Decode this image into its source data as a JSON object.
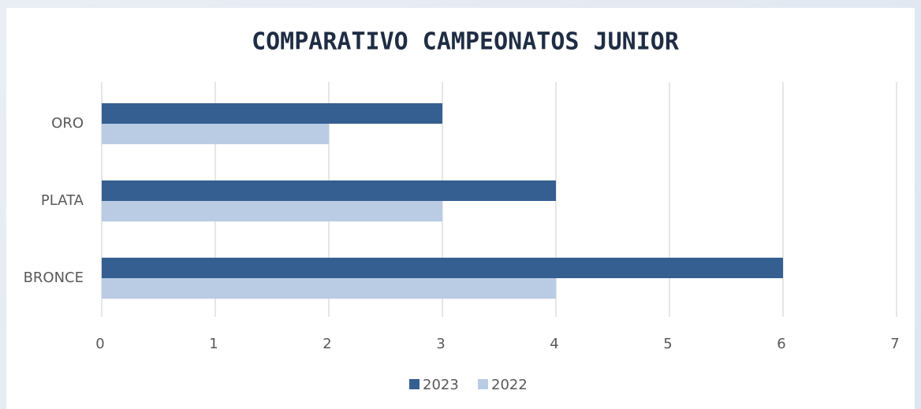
{
  "chart_data": {
    "type": "bar",
    "orientation": "horizontal",
    "title": "COMPARATIVO CAMPEONATOS JUNIOR",
    "categories": [
      "ORO",
      "PLATA",
      "BRONCE"
    ],
    "series": [
      {
        "name": "2023",
        "color": "#355f91",
        "values": [
          3,
          4,
          6
        ]
      },
      {
        "name": "2022",
        "color": "#b9cce4",
        "values": [
          2,
          3,
          4
        ]
      }
    ],
    "xlim": [
      0,
      7
    ],
    "xticks": [
      0,
      1,
      2,
      3,
      4,
      5,
      6,
      7
    ],
    "grid": true,
    "legend": "bottom"
  }
}
